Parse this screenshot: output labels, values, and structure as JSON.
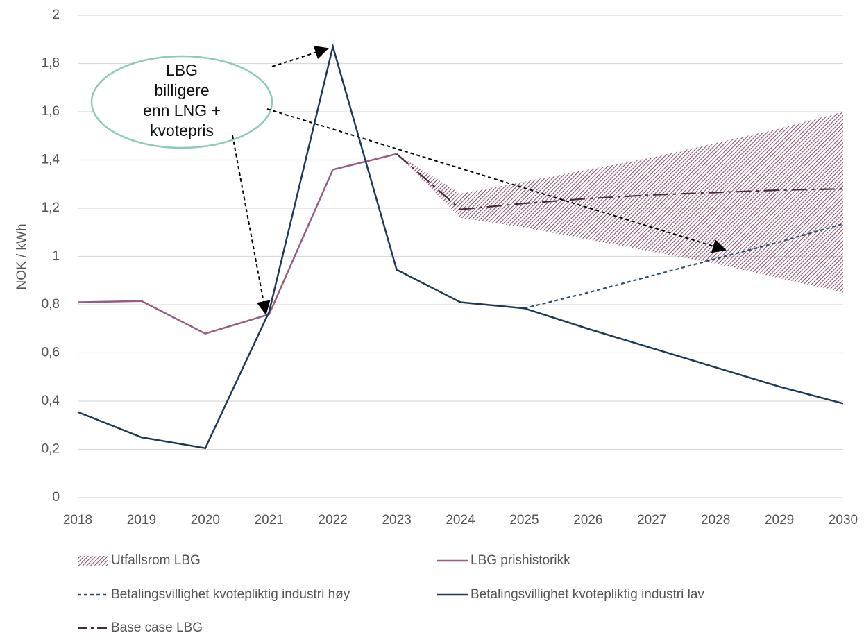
{
  "chart_data": {
    "type": "line",
    "y_label": "NOK / kWh",
    "x": [
      2018,
      2019,
      2020,
      2021,
      2022,
      2023,
      2024,
      2025,
      2026,
      2027,
      2028,
      2029,
      2030
    ],
    "xlim": [
      2018,
      2030
    ],
    "xticks": [
      2018,
      2019,
      2020,
      2021,
      2022,
      2023,
      2024,
      2025,
      2026,
      2027,
      2028,
      2029,
      2030
    ],
    "ylim": [
      0,
      2
    ],
    "yticks": [
      0,
      {
        "value": 0.2,
        "label": "0,2"
      },
      {
        "value": 0.4,
        "label": "0,4"
      },
      {
        "value": 0.6,
        "label": "0,6"
      },
      {
        "value": 0.8,
        "label": "0,8"
      },
      1,
      {
        "value": 1.2,
        "label": "1,2"
      },
      {
        "value": 1.4,
        "label": "1,4"
      },
      {
        "value": 1.6,
        "label": "1,6"
      },
      {
        "value": 1.8,
        "label": "1,8"
      },
      2
    ],
    "grid": true,
    "legend": "bottom",
    "band": {
      "name": "Utfallsrom LBG",
      "color": "#8a5478",
      "lower": [
        null,
        null,
        null,
        null,
        null,
        1.425,
        1.16,
        1.12,
        1.07,
        1.02,
        0.97,
        0.91,
        0.85
      ],
      "upper": [
        null,
        null,
        null,
        null,
        null,
        1.425,
        1.26,
        1.31,
        1.36,
        1.41,
        1.47,
        1.53,
        1.6
      ]
    },
    "series": [
      {
        "name": "LBG prishistorikk",
        "color": "#9a5a82",
        "dash": "solid",
        "values": [
          0.81,
          0.815,
          0.68,
          0.76,
          1.36,
          1.425,
          null,
          null,
          null,
          null,
          null,
          null,
          null
        ]
      },
      {
        "name": "Betalingsvillighet kvotepliktig industri høy",
        "color": "#2b4f6e",
        "dash": "dashed",
        "values": [
          null,
          null,
          null,
          null,
          null,
          null,
          null,
          0.785,
          0.85,
          0.92,
          0.99,
          1.06,
          1.135
        ]
      },
      {
        "name": "Betalingsvillighet kvotepliktig industri lav",
        "color": "#1f3a56",
        "dash": "solid",
        "values": [
          0.355,
          0.25,
          0.205,
          0.77,
          1.87,
          0.945,
          0.81,
          0.785,
          0.7,
          0.62,
          0.54,
          0.46,
          0.39
        ]
      },
      {
        "name": "Base case LBG",
        "color": "#4a2a38",
        "dash": "dashdot",
        "values": [
          null,
          null,
          null,
          null,
          null,
          1.425,
          1.195,
          1.22,
          1.24,
          1.255,
          1.265,
          1.275,
          1.28
        ]
      }
    ],
    "annotation": {
      "lines": [
        "LBG",
        "billigere",
        "enn LNG +",
        "kvotepris"
      ]
    }
  }
}
